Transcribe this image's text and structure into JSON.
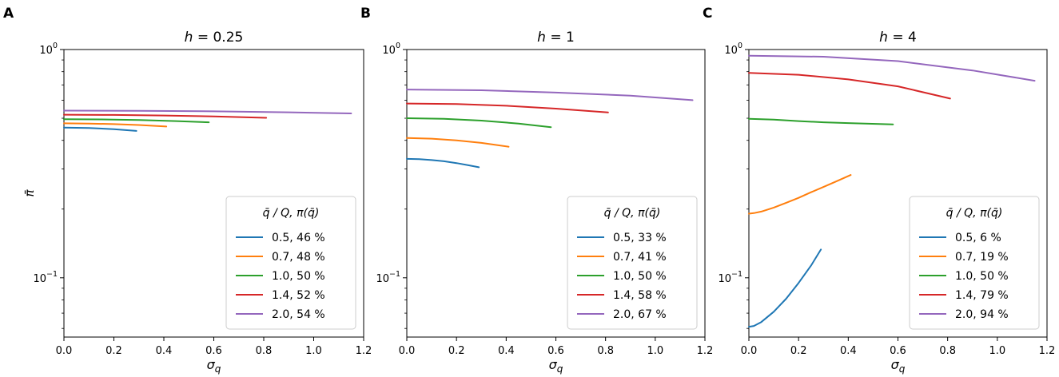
{
  "colors": {
    "blue": "#1f77b4",
    "orange": "#ff7f0e",
    "green": "#2ca02c",
    "red": "#d62728",
    "purple": "#9467bd"
  },
  "chart_data": [
    {
      "type": "line",
      "panel_label": "A",
      "title_var": "h",
      "title_rest": " = 0.25",
      "xlabel_main": "σ",
      "xlabel_sub": "q",
      "ylabel": "π̄",
      "yscale": "log",
      "xlim": [
        0,
        1.2
      ],
      "ylim": [
        0.055,
        1.0
      ],
      "xticks": [
        0.0,
        0.2,
        0.4,
        0.6,
        0.8,
        1.0,
        1.2
      ],
      "xtick_labels": [
        "0.0",
        "0.2",
        "0.4",
        "0.6",
        "0.8",
        "1.0",
        "1.2"
      ],
      "yticks": [
        {
          "value": 1.0,
          "base": "10",
          "exp": "0"
        },
        {
          "value": 0.1,
          "base": "10",
          "exp": "−1"
        }
      ],
      "legend_title": "q̄ / Q,  π(q̄)",
      "legend_position": "lower-right",
      "series": [
        {
          "name": "0.5, 46 %",
          "color": "#1f77b4",
          "x": [
            0.0,
            0.1,
            0.2,
            0.29
          ],
          "y": [
            0.455,
            0.453,
            0.448,
            0.44
          ]
        },
        {
          "name": "0.7, 48 %",
          "color": "#ff7f0e",
          "x": [
            0.0,
            0.1,
            0.2,
            0.3,
            0.41
          ],
          "y": [
            0.475,
            0.474,
            0.471,
            0.467,
            0.46
          ]
        },
        {
          "name": "1.0, 50 %",
          "color": "#2ca02c",
          "x": [
            0.0,
            0.15,
            0.3,
            0.45,
            0.58
          ],
          "y": [
            0.495,
            0.494,
            0.491,
            0.486,
            0.48
          ]
        },
        {
          "name": "1.4, 52 %",
          "color": "#d62728",
          "x": [
            0.0,
            0.2,
            0.4,
            0.6,
            0.81
          ],
          "y": [
            0.518,
            0.517,
            0.514,
            0.509,
            0.502
          ]
        },
        {
          "name": "2.0, 54 %",
          "color": "#9467bd",
          "x": [
            0.0,
            0.3,
            0.6,
            0.9,
            1.15
          ],
          "y": [
            0.54,
            0.539,
            0.536,
            0.531,
            0.525
          ]
        }
      ]
    },
    {
      "type": "line",
      "panel_label": "B",
      "title_var": "h",
      "title_rest": " = 1",
      "xlabel_main": "σ",
      "xlabel_sub": "q",
      "ylabel": "",
      "yscale": "log",
      "xlim": [
        0,
        1.2
      ],
      "ylim": [
        0.055,
        1.0
      ],
      "xticks": [
        0.0,
        0.2,
        0.4,
        0.6,
        0.8,
        1.0,
        1.2
      ],
      "xtick_labels": [
        "0.0",
        "0.2",
        "0.4",
        "0.6",
        "0.8",
        "1.0",
        "1.2"
      ],
      "yticks": [
        {
          "value": 1.0,
          "base": "10",
          "exp": "0"
        },
        {
          "value": 0.1,
          "base": "10",
          "exp": "−1"
        }
      ],
      "legend_title": "q̄ / Q,  π(q̄)",
      "legend_position": "lower-right",
      "series": [
        {
          "name": "0.5, 33 %",
          "color": "#1f77b4",
          "x": [
            0.0,
            0.05,
            0.1,
            0.15,
            0.2,
            0.25,
            0.29
          ],
          "y": [
            0.332,
            0.331,
            0.328,
            0.324,
            0.318,
            0.311,
            0.305
          ]
        },
        {
          "name": "0.7, 41 %",
          "color": "#ff7f0e",
          "x": [
            0.0,
            0.1,
            0.2,
            0.3,
            0.41
          ],
          "y": [
            0.41,
            0.407,
            0.4,
            0.39,
            0.375
          ]
        },
        {
          "name": "1.0, 50 %",
          "color": "#2ca02c",
          "x": [
            0.0,
            0.15,
            0.3,
            0.45,
            0.58
          ],
          "y": [
            0.5,
            0.497,
            0.488,
            0.474,
            0.457
          ]
        },
        {
          "name": "1.4, 58 %",
          "color": "#d62728",
          "x": [
            0.0,
            0.2,
            0.4,
            0.6,
            0.81
          ],
          "y": [
            0.58,
            0.577,
            0.567,
            0.551,
            0.53
          ]
        },
        {
          "name": "2.0, 67 %",
          "color": "#9467bd",
          "x": [
            0.0,
            0.3,
            0.6,
            0.9,
            1.15
          ],
          "y": [
            0.668,
            0.663,
            0.648,
            0.628,
            0.6
          ]
        }
      ]
    },
    {
      "type": "line",
      "panel_label": "C",
      "title_var": "h",
      "title_rest": " = 4",
      "xlabel_main": "σ",
      "xlabel_sub": "q",
      "ylabel": "",
      "yscale": "log",
      "xlim": [
        0,
        1.2
      ],
      "ylim": [
        0.055,
        1.0
      ],
      "xticks": [
        0.0,
        0.2,
        0.4,
        0.6,
        0.8,
        1.0,
        1.2
      ],
      "xtick_labels": [
        "0.0",
        "0.2",
        "0.4",
        "0.6",
        "0.8",
        "1.0",
        "1.2"
      ],
      "yticks": [
        {
          "value": 1.0,
          "base": "10",
          "exp": "0"
        },
        {
          "value": 0.1,
          "base": "10",
          "exp": "−1"
        }
      ],
      "legend_title": "q̄ / Q,  π(q̄)",
      "legend_position": "lower-right",
      "series": [
        {
          "name": "0.5,  6 %",
          "color": "#1f77b4",
          "x": [
            0.0,
            0.02,
            0.05,
            0.1,
            0.15,
            0.2,
            0.25,
            0.29
          ],
          "y": [
            0.061,
            0.0615,
            0.064,
            0.071,
            0.081,
            0.095,
            0.113,
            0.133
          ]
        },
        {
          "name": "0.7, 19 %",
          "color": "#ff7f0e",
          "x": [
            0.0,
            0.02,
            0.05,
            0.1,
            0.15,
            0.2,
            0.25,
            0.3,
            0.35,
            0.41
          ],
          "y": [
            0.191,
            0.192,
            0.195,
            0.203,
            0.213,
            0.224,
            0.237,
            0.25,
            0.264,
            0.282
          ]
        },
        {
          "name": "1.0, 50 %",
          "color": "#2ca02c",
          "x": [
            0.0,
            0.1,
            0.2,
            0.3,
            0.4,
            0.58
          ],
          "y": [
            0.497,
            0.493,
            0.486,
            0.48,
            0.476,
            0.47
          ]
        },
        {
          "name": "1.4, 79 %",
          "color": "#d62728",
          "x": [
            0.0,
            0.2,
            0.4,
            0.6,
            0.81
          ],
          "y": [
            0.79,
            0.775,
            0.74,
            0.69,
            0.61
          ]
        },
        {
          "name": "2.0, 94 %",
          "color": "#9467bd",
          "x": [
            0.0,
            0.3,
            0.6,
            0.9,
            1.15
          ],
          "y": [
            0.94,
            0.93,
            0.89,
            0.81,
            0.73
          ]
        }
      ]
    }
  ]
}
